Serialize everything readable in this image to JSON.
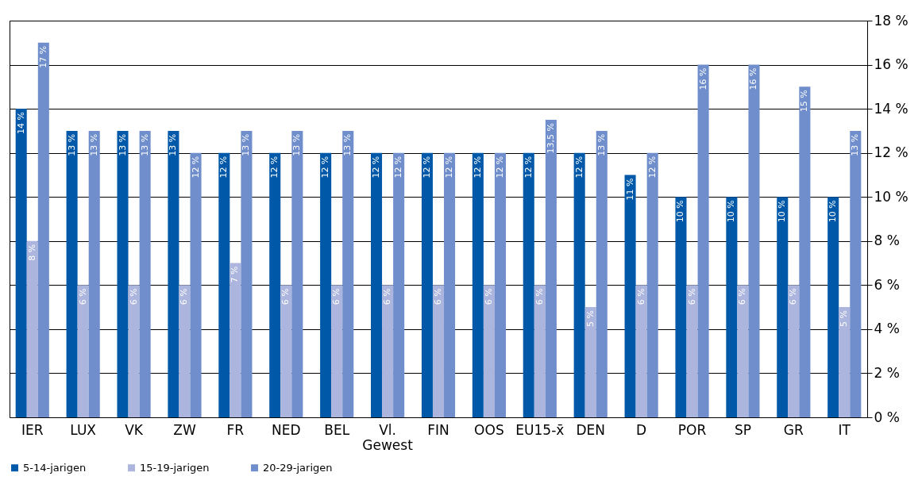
{
  "chart_data": {
    "type": "bar",
    "categories": [
      "IER",
      "LUX",
      "VK",
      "ZW",
      "FR",
      "NED",
      "BEL",
      "Vl. Gewest",
      "FIN",
      "OOS",
      "EU15-x̄",
      "DEN",
      "D",
      "POR",
      "SP",
      "GR",
      "IT"
    ],
    "series": [
      {
        "name": "5-14-jarigen",
        "color": "#0059a8",
        "values": [
          14,
          13,
          13,
          13,
          12,
          12,
          12,
          12,
          12,
          12,
          12,
          12,
          11,
          10,
          10,
          10,
          10
        ],
        "value_labels": [
          "14 %",
          "13 %",
          "13 %",
          "13 %",
          "12 %",
          "12 %",
          "12 %",
          "12 %",
          "12 %",
          "12 %",
          "12 %",
          "12 %",
          "11 %",
          "10 %",
          "10 %",
          "10 %",
          "10 %"
        ]
      },
      {
        "name": "15-19-jarigen",
        "color": "#abb5dd",
        "values": [
          8,
          6,
          6,
          6,
          7,
          6,
          6,
          6,
          6,
          6,
          6,
          5,
          6,
          6,
          6,
          6,
          5
        ],
        "value_labels": [
          "8 %",
          "6 %",
          "6 %",
          "6 %",
          "7 %",
          "6 %",
          "6 %",
          "6 %",
          "6 %",
          "6 %",
          "6 %",
          "5 %",
          "6 %",
          "6 %",
          "6 %",
          "6 %",
          "5 %"
        ]
      },
      {
        "name": "20-29-jarigen",
        "color": "#6f8ecb",
        "values": [
          17,
          13,
          13,
          12,
          13,
          13,
          13,
          12,
          12,
          12,
          13.5,
          13,
          12,
          16,
          16,
          15,
          13
        ],
        "value_labels": [
          "17 %",
          "13 %",
          "13 %",
          "12 %",
          "13 %",
          "13 %",
          "13 %",
          "12 %",
          "12 %",
          "12 %",
          "13,5 %",
          "13 %",
          "12 %",
          "16 %",
          "16 %",
          "15 %",
          "13 %"
        ]
      }
    ],
    "ylim": [
      0,
      18
    ],
    "yticks": [
      {
        "value": 0,
        "label": "0 %"
      },
      {
        "value": 2,
        "label": "2 %"
      },
      {
        "value": 4,
        "label": "4 %"
      },
      {
        "value": 6,
        "label": "6 %"
      },
      {
        "value": 8,
        "label": "8 %"
      },
      {
        "value": 10,
        "label": "10 %"
      },
      {
        "value": 12,
        "label": "12 %"
      },
      {
        "value": 14,
        "label": "14 %"
      },
      {
        "value": 16,
        "label": "16 %"
      },
      {
        "value": 18,
        "label": "18 %"
      }
    ],
    "grid": "y",
    "legend": "bottom left"
  }
}
